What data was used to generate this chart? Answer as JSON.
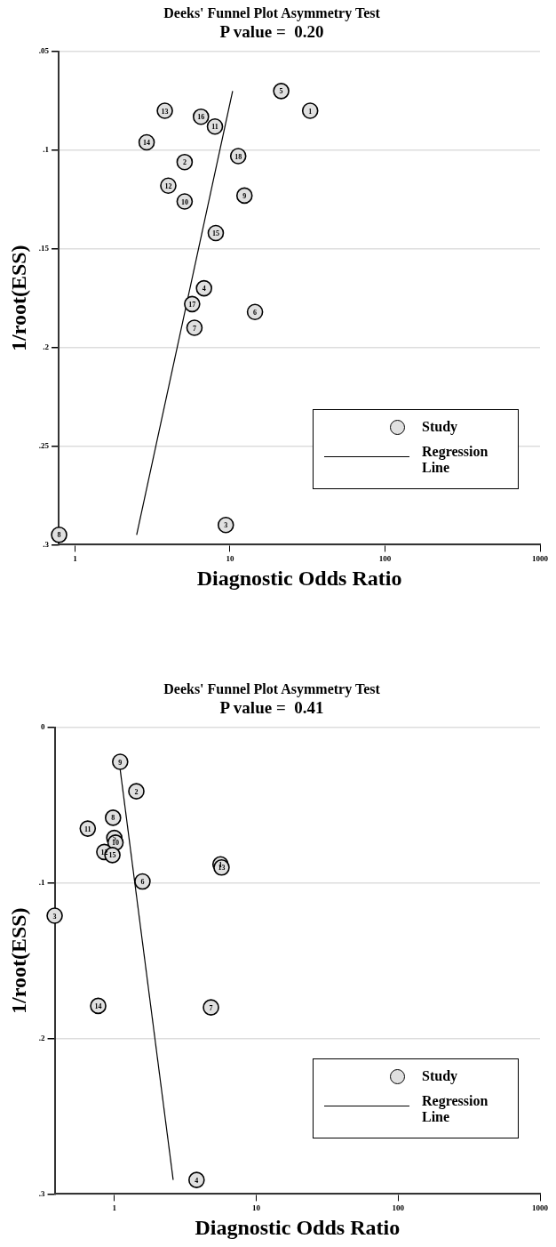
{
  "chart_data": [
    {
      "type": "scatter",
      "title": "Deeks' Funnel Plot Asymmetry Test",
      "subtitle": "P value =  0.20",
      "xlabel": "Diagnostic Odds Ratio",
      "ylabel": "1/root(ESS)",
      "log": "x",
      "grid": "y",
      "legend": "bottom right",
      "line_style": "solid",
      "xlim": [
        0.785,
        1000
      ],
      "xticks": [
        1,
        10,
        100,
        1000
      ],
      "ylim": [
        0.3,
        0.05
      ],
      "yticks": [
        {
          "value": 0.05,
          "label": ".05"
        },
        {
          "value": 0.1,
          "label": ".1"
        },
        {
          "value": 0.15,
          "label": ".15"
        },
        {
          "value": 0.2,
          "label": ".2"
        },
        {
          "value": 0.25,
          "label": ".25"
        },
        {
          "value": 0.3,
          "label": ".3"
        }
      ],
      "series": [
        {
          "name": "Study",
          "marker": "circle",
          "color": "#e0e0e0",
          "x": [
            32.9,
            5.1,
            9.4,
            6.8,
            21.4,
            14.5,
            5.9,
            0.79,
            12.4,
            5.1,
            8.0,
            4.0,
            3.8,
            2.9,
            8.1,
            6.5,
            5.7,
            11.3
          ],
          "values": [
            0.08,
            0.106,
            0.29,
            0.17,
            0.07,
            0.182,
            0.19,
            0.295,
            0.123,
            0.126,
            0.088,
            0.118,
            0.08,
            0.096,
            0.142,
            0.083,
            0.178,
            0.103
          ]
        },
        {
          "name": "Regression Line",
          "type": "line",
          "marker": "none",
          "color": "#000000",
          "x": [
            10.4,
            2.5
          ],
          "values": [
            0.07,
            0.295
          ]
        }
      ],
      "annotations": [
        {
          "text": "1",
          "x": 32.9,
          "y": 0.08
        },
        {
          "text": "2",
          "x": 5.1,
          "y": 0.106
        },
        {
          "text": "3",
          "x": 9.4,
          "y": 0.29
        },
        {
          "text": "4",
          "x": 6.8,
          "y": 0.17
        },
        {
          "text": "5",
          "x": 21.4,
          "y": 0.07
        },
        {
          "text": "6",
          "x": 14.5,
          "y": 0.182
        },
        {
          "text": "7",
          "x": 5.9,
          "y": 0.19
        },
        {
          "text": "8",
          "x": 0.79,
          "y": 0.295
        },
        {
          "text": "9",
          "x": 12.4,
          "y": 0.123
        },
        {
          "text": "10",
          "x": 5.1,
          "y": 0.126
        },
        {
          "text": "11",
          "x": 8.0,
          "y": 0.088
        },
        {
          "text": "12",
          "x": 4.0,
          "y": 0.118
        },
        {
          "text": "13",
          "x": 3.8,
          "y": 0.08
        },
        {
          "text": "14",
          "x": 2.9,
          "y": 0.096
        },
        {
          "text": "15",
          "x": 8.1,
          "y": 0.142
        },
        {
          "text": "16",
          "x": 6.5,
          "y": 0.083
        },
        {
          "text": "17",
          "x": 5.7,
          "y": 0.178
        },
        {
          "text": "18",
          "x": 11.3,
          "y": 0.103
        }
      ]
    },
    {
      "type": "scatter",
      "title": "Deeks' Funnel Plot Asymmetry Test",
      "subtitle": "P value =  0.41",
      "xlabel": "Diagnostic Odds Ratio",
      "ylabel": "1/root(ESS)",
      "log": "x",
      "grid": "y",
      "legend": "bottom right",
      "line_style": "solid",
      "xlim": [
        0.38,
        1000
      ],
      "xticks": [
        1,
        10,
        100,
        1000
      ],
      "ylim": [
        0.3,
        0
      ],
      "yticks": [
        0,
        {
          "value": 0.1,
          "label": ".1"
        },
        {
          "value": 0.2,
          "label": ".2"
        },
        {
          "value": 0.3,
          "label": ".3"
        }
      ],
      "series": [
        {
          "name": "Study",
          "marker": "circle",
          "color": "#e0e0e0",
          "x": [
            5.6,
            1.43,
            0.38,
            3.8,
            1.0,
            1.58,
            4.8,
            0.98,
            1.1,
            1.02,
            0.65,
            0.85,
            5.7,
            0.77,
            0.97
          ],
          "values": [
            0.088,
            0.041,
            0.121,
            0.291,
            0.071,
            0.099,
            0.18,
            0.058,
            0.022,
            0.074,
            0.065,
            0.08,
            0.09,
            0.179,
            0.082
          ]
        },
        {
          "name": "Regression Line",
          "type": "line",
          "marker": "none",
          "color": "#000000",
          "x": [
            1.1,
            2.6
          ],
          "values": [
            0.027,
            0.291
          ]
        }
      ],
      "annotations": [
        {
          "text": "1",
          "x": 5.6,
          "y": 0.088
        },
        {
          "text": "2",
          "x": 1.43,
          "y": 0.041
        },
        {
          "text": "3",
          "x": 0.38,
          "y": 0.121
        },
        {
          "text": "4",
          "x": 3.8,
          "y": 0.291
        },
        {
          "text": "5",
          "x": 1.0,
          "y": 0.071
        },
        {
          "text": "6",
          "x": 1.58,
          "y": 0.099
        },
        {
          "text": "7",
          "x": 4.8,
          "y": 0.18
        },
        {
          "text": "8",
          "x": 0.98,
          "y": 0.058
        },
        {
          "text": "9",
          "x": 1.1,
          "y": 0.022
        },
        {
          "text": "10",
          "x": 1.02,
          "y": 0.074
        },
        {
          "text": "11",
          "x": 0.65,
          "y": 0.065
        },
        {
          "text": "12",
          "x": 0.85,
          "y": 0.08
        },
        {
          "text": "13",
          "x": 5.7,
          "y": 0.09
        },
        {
          "text": "14",
          "x": 0.77,
          "y": 0.179
        },
        {
          "text": "15",
          "x": 0.97,
          "y": 0.082
        }
      ]
    }
  ]
}
